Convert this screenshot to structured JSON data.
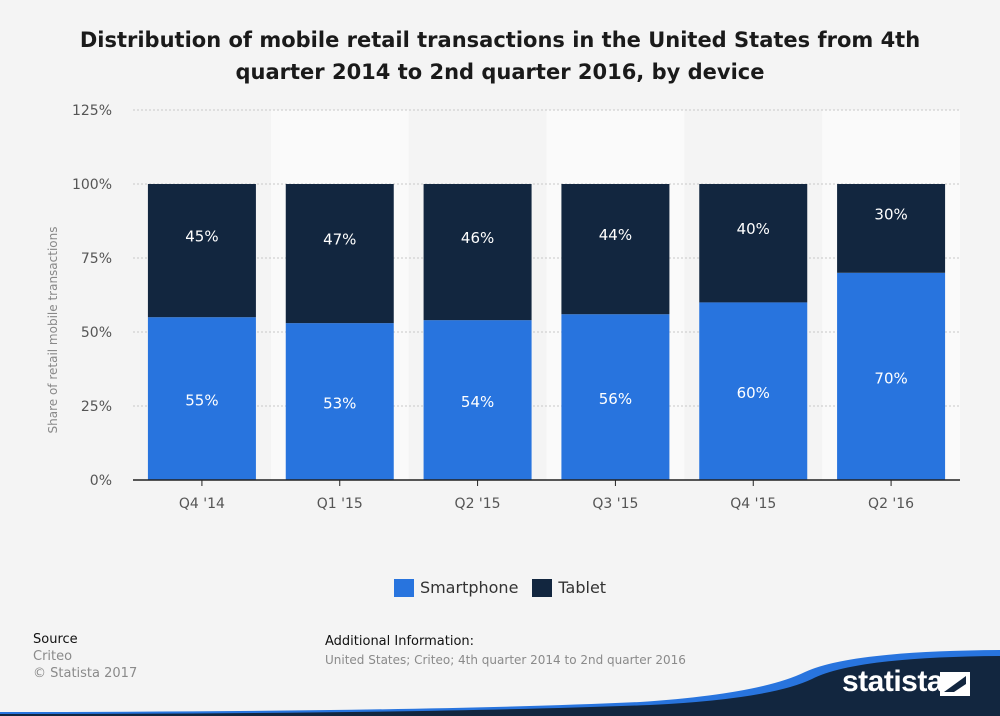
{
  "title": "Distribution of mobile retail transactions in the United States from 4th quarter 2014 to 2nd quarter 2016, by device",
  "colors": {
    "smartphone": "#2874de",
    "tablet": "#12263f",
    "accent": "#2874de"
  },
  "chart_data": {
    "type": "bar",
    "stacked": true,
    "categories": [
      "Q4 '14",
      "Q1 '15",
      "Q2 '15",
      "Q3 '15",
      "Q4 '15",
      "Q2 '16"
    ],
    "series": [
      {
        "name": "Smartphone",
        "values": [
          55,
          53,
          54,
          56,
          60,
          70
        ],
        "labels": [
          "55%",
          "53%",
          "54%",
          "56%",
          "60%",
          "70%"
        ]
      },
      {
        "name": "Tablet",
        "values": [
          45,
          47,
          46,
          44,
          40,
          30
        ],
        "labels": [
          "45%",
          "47%",
          "46%",
          "44%",
          "40%",
          "30%"
        ]
      }
    ],
    "ylabel": "Share of retail mobile transactions",
    "xlabel": "",
    "ylim": [
      0,
      125
    ],
    "yticks": [
      0,
      25,
      50,
      75,
      100,
      125
    ],
    "ytick_labels": [
      "0%",
      "25%",
      "50%",
      "75%",
      "100%",
      "125%"
    ],
    "grid": true,
    "legend_position": "bottom-center"
  },
  "legend": {
    "smartphone": "Smartphone",
    "tablet": "Tablet"
  },
  "source": {
    "label": "Source",
    "name": "Criteo",
    "copyright": "© Statista 2017"
  },
  "additional_info": {
    "label": "Additional Information:",
    "text": "United States; Criteo; 4th quarter 2014 to 2nd quarter 2016"
  },
  "brand": {
    "logo_text": "statista"
  }
}
